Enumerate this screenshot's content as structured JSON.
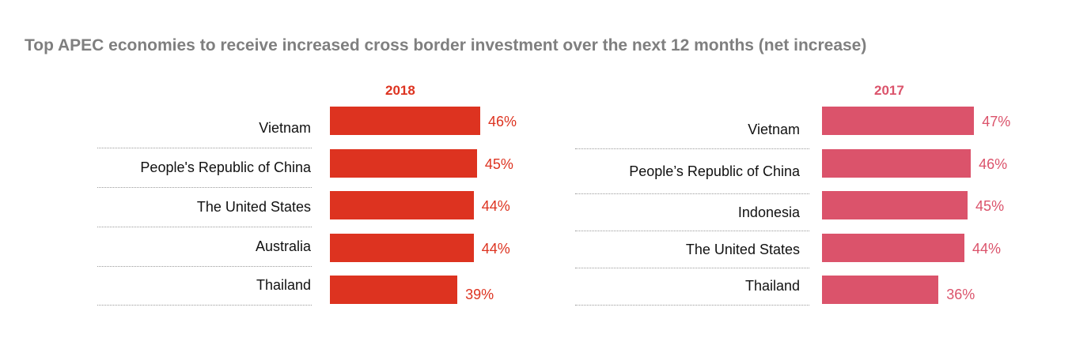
{
  "title": "Top APEC economies to receive increased cross border investment over the next 12 months (net increase)",
  "colors": {
    "title": "#7f7f7f",
    "y2018": "#dd3320",
    "y2017": "#db536b"
  },
  "chart_data": [
    {
      "type": "bar",
      "orientation": "horizontal",
      "title": "2018",
      "unit": "%",
      "categories": [
        "Vietnam",
        "People's Republic of China",
        "The United States",
        "Australia",
        "Thailand"
      ],
      "values": [
        46,
        45,
        44,
        44,
        39
      ],
      "value_labels": [
        "46%",
        "45%",
        "44%",
        "44%",
        "39%"
      ],
      "xlim": [
        0,
        50
      ]
    },
    {
      "type": "bar",
      "orientation": "horizontal",
      "title": "2017",
      "unit": "%",
      "categories": [
        "Vietnam",
        "People’s Republic of China",
        "Indonesia",
        "The United States",
        "Thailand"
      ],
      "values": [
        47,
        46,
        45,
        44,
        36
      ],
      "value_labels": [
        "47%",
        "46%",
        "45%",
        "44%",
        "36%"
      ],
      "xlim": [
        0,
        50
      ]
    }
  ]
}
